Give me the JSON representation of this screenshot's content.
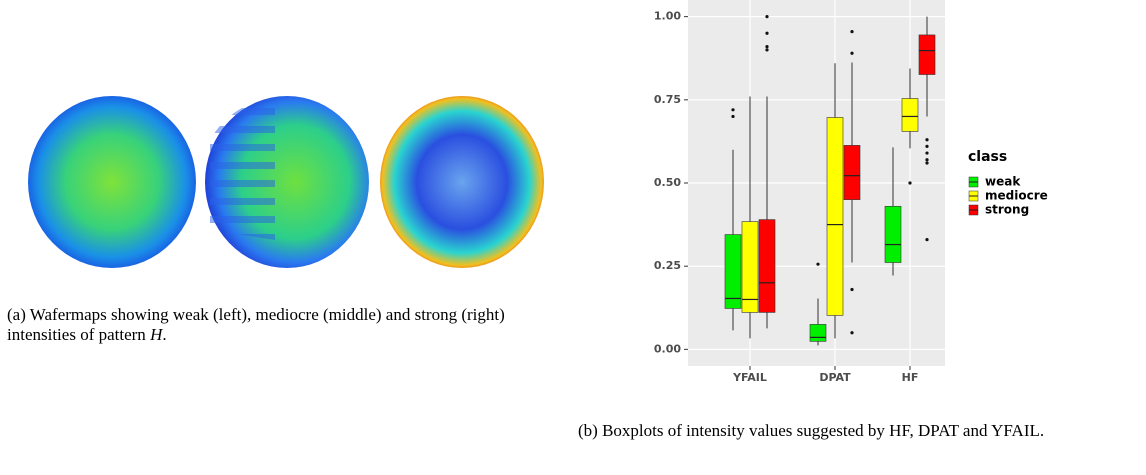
{
  "caption_a": {
    "text": "(a) Wafermaps showing weak (left), mediocre (middle) and strong (right) intensities of pattern ",
    "symbol": "H",
    "end": "."
  },
  "caption_b": {
    "text": "(b) Boxplots of intensity values suggested by HF, DPAT and YFAIL."
  },
  "chart_data": {
    "type": "box",
    "categories": [
      "YFAIL",
      "DPAT",
      "HF"
    ],
    "ylim": [
      -0.05,
      1.05
    ],
    "yticks": [
      {
        "value": 0,
        "label": "0.00"
      },
      {
        "value": 0.25,
        "label": "0.25"
      },
      {
        "value": 0.5,
        "label": "0.50"
      },
      {
        "value": 0.75,
        "label": "0.75"
      },
      {
        "value": 1,
        "label": "1.00"
      }
    ],
    "grid": true,
    "legend_title": "class",
    "legend": "right",
    "series": [
      {
        "name": "weak",
        "color": "#00ee00",
        "boxes": [
          {
            "min": 0.057,
            "q1": 0.123,
            "median": 0.153,
            "q3": 0.345,
            "max": 0.6,
            "outliers": [
              0.72,
              0.7
            ]
          },
          {
            "min": 0.012,
            "q1": 0.024,
            "median": 0.036,
            "q3": 0.075,
            "max": 0.153,
            "outliers": [
              0.256
            ]
          },
          {
            "min": 0.222,
            "q1": 0.261,
            "median": 0.315,
            "q3": 0.43,
            "max": 0.607,
            "outliers": []
          }
        ]
      },
      {
        "name": "mediocre",
        "color": "#ffff00",
        "boxes": [
          {
            "min": 0.033,
            "q1": 0.111,
            "median": 0.15,
            "q3": 0.384,
            "max": 0.76,
            "outliers": []
          },
          {
            "min": 0.033,
            "q1": 0.102,
            "median": 0.375,
            "q3": 0.697,
            "max": 0.86,
            "outliers": []
          },
          {
            "min": 0.604,
            "q1": 0.655,
            "median": 0.7,
            "q3": 0.754,
            "max": 0.844,
            "outliers": [
              0.5
            ]
          }
        ]
      },
      {
        "name": "strong",
        "color": "#ff0000",
        "boxes": [
          {
            "min": 0.063,
            "q1": 0.111,
            "median": 0.2,
            "q3": 0.39,
            "max": 0.76,
            "outliers": [
              1.0,
              0.95,
              0.91,
              0.9
            ]
          },
          {
            "min": 0.261,
            "q1": 0.45,
            "median": 0.522,
            "q3": 0.613,
            "max": 0.862,
            "outliers": [
              0.955,
              0.89,
              0.18,
              0.05
            ]
          },
          {
            "min": 0.7,
            "q1": 0.826,
            "median": 0.898,
            "q3": 0.945,
            "max": 1.0,
            "outliers": [
              0.63,
              0.61,
              0.59,
              0.57,
              0.56,
              0.33
            ]
          }
        ]
      }
    ]
  }
}
